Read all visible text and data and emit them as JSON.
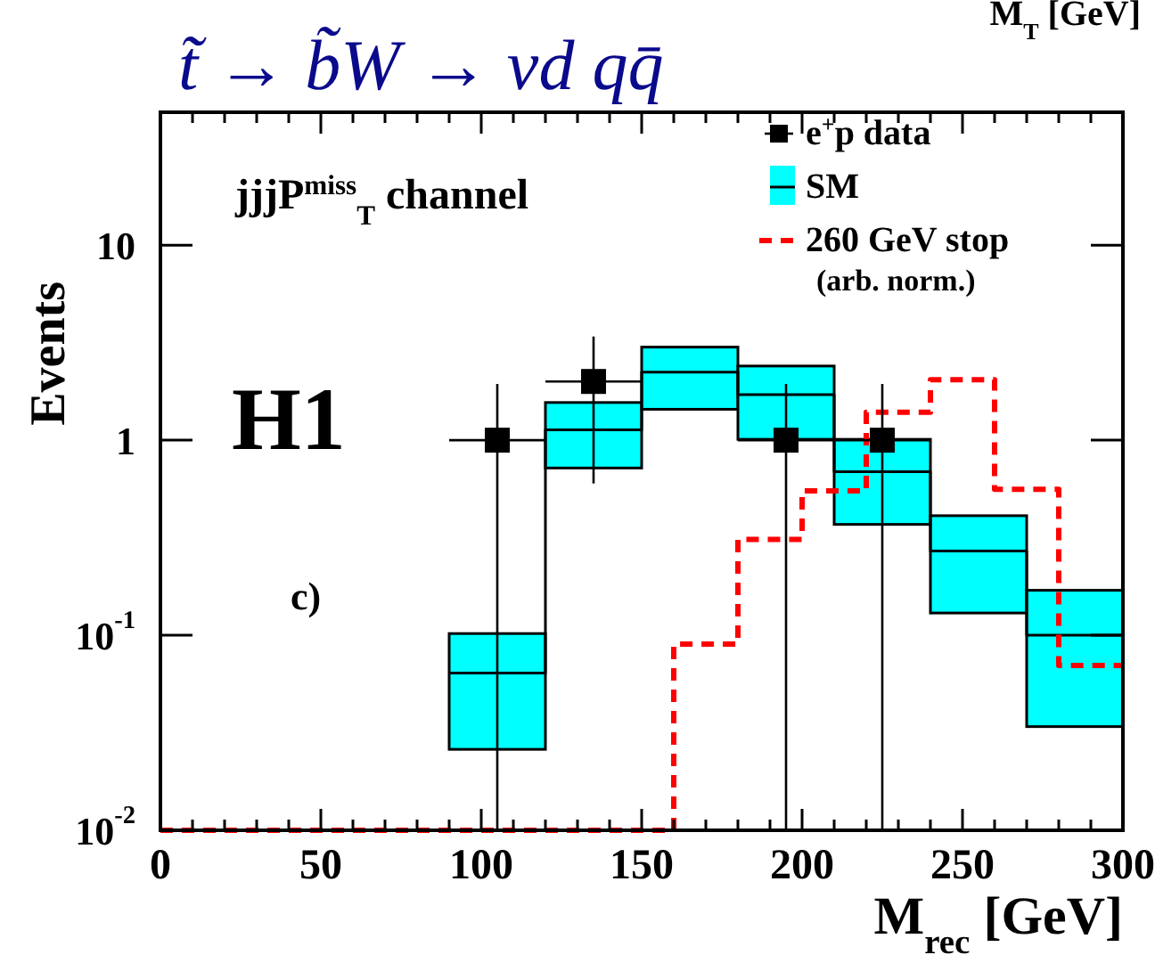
{
  "chart_data": {
    "type": "step",
    "title": "t̃ → b̃W → νd qq̄",
    "xlabel": "M$_{rec}$ [GeV]",
    "ylabel": "Events",
    "log": "y",
    "grid": false,
    "legend": "top right",
    "annotations": [
      "jjjP$^{miss}$$_{T}$ channel",
      "H1",
      "c)",
      "M$_{T}$ [GeV]"
    ],
    "xlim": [
      0,
      300
    ],
    "xticks": [
      0,
      {
        "value": 10,
        "label": null
      },
      {
        "value": 20,
        "label": null
      },
      {
        "value": 30,
        "label": null
      },
      {
        "value": 40,
        "label": null
      },
      50,
      {
        "value": 60,
        "label": null
      },
      {
        "value": 70,
        "label": null
      },
      {
        "value": 80,
        "label": null
      },
      {
        "value": 90,
        "label": null
      },
      100,
      {
        "value": 110,
        "label": null
      },
      {
        "value": 120,
        "label": null
      },
      {
        "value": 130,
        "label": null
      },
      {
        "value": 140,
        "label": null
      },
      150,
      {
        "value": 160,
        "label": null
      },
      {
        "value": 170,
        "label": null
      },
      {
        "value": 180,
        "label": null
      },
      {
        "value": 190,
        "label": null
      },
      200,
      {
        "value": 210,
        "label": null
      },
      {
        "value": 220,
        "label": null
      },
      {
        "value": 230,
        "label": null
      },
      {
        "value": 240,
        "label": null
      },
      250,
      {
        "value": 260,
        "label": null
      },
      {
        "value": 270,
        "label": null
      },
      {
        "value": 280,
        "label": null
      },
      {
        "value": 290,
        "label": null
      },
      300
    ],
    "ylim": [
      0.01,
      48
    ],
    "yticks": [
      {
        "value": 0.01,
        "label": "10$^{-2}$"
      },
      {
        "value": 0.1,
        "label": "10$^{-1}$"
      },
      1,
      10
    ],
    "series": [
      {
        "name": "e$^{+}$p data",
        "type": "scatter",
        "marker": "square",
        "color": "#000000",
        "x": [
          105,
          135,
          195,
          225
        ],
        "values": [
          1,
          2,
          1,
          1
        ],
        "errors": [
          [
            0.01,
            1.94
          ],
          1.4,
          [
            0.01,
            1.94
          ],
          [
            0.01,
            1.94
          ]
        ],
        "xerrors": [
          15,
          15,
          15,
          15
        ]
      },
      {
        "name": "SM",
        "type": "bar",
        "color": "#00ffff",
        "x": [
          105,
          135,
          165,
          195,
          225,
          255,
          285
        ],
        "base": [
          0.026,
          0.72,
          1.44,
          1.01,
          0.37,
          0.13,
          0.034
        ],
        "values": [
          0.076,
          0.84,
          1.56,
          1.39,
          0.64,
          0.28,
          0.136
        ]
      },
      {
        "color": "#000000",
        "x": [
          90,
          120,
          150,
          180,
          210,
          240,
          270,
          300
        ],
        "values": [
          0.064,
          1.13,
          2.23,
          1.71,
          0.69,
          0.27,
          0.1,
          0.1
        ]
      },
      {
        "name": "260 GeV stop\n(arb. norm.)",
        "color": "#ff0000",
        "line_style": "dashed",
        "x": [
          0,
          160,
          180,
          200,
          220,
          240,
          260,
          280,
          300
        ],
        "values": [
          0.01,
          0.09,
          0.31,
          0.55,
          1.39,
          2.04,
          0.56,
          0.07,
          0.07
        ]
      }
    ]
  }
}
